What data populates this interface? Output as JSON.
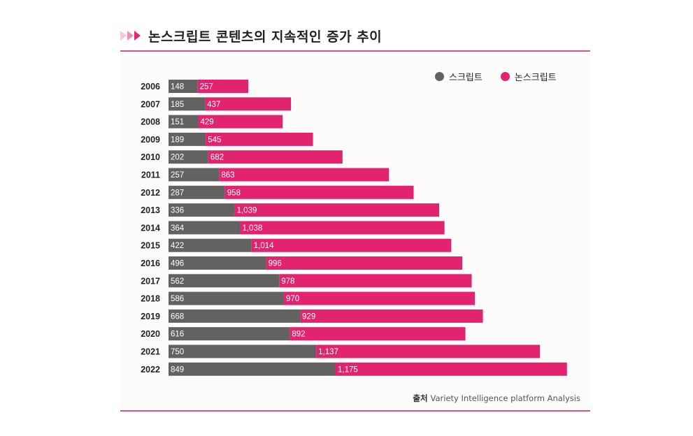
{
  "header": {
    "title": "논스크립트 콘텐츠의 지속적인 증가 추이"
  },
  "colors": {
    "script": "#626262",
    "nonscript": "#e2246e",
    "accent_rule": "#d9547f",
    "panel_bg": "#fdfcfa"
  },
  "legend": {
    "items": [
      {
        "label": "스크립트",
        "color": "#626262"
      },
      {
        "label": "논스크립트",
        "color": "#e2246e"
      }
    ]
  },
  "source": {
    "prefix": "출처",
    "text": "Variety Intelligence platform Analysis"
  },
  "chart_data": {
    "type": "bar",
    "orientation": "horizontal",
    "stacked": true,
    "title": "논스크립트 콘텐츠의 지속적인 증가 추이",
    "xlabel": "",
    "ylabel": "",
    "grid": false,
    "legend_position": "top-right",
    "categories": [
      "2006",
      "2007",
      "2008",
      "2009",
      "2010",
      "2011",
      "2012",
      "2013",
      "2014",
      "2015",
      "2016",
      "2017",
      "2018",
      "2019",
      "2020",
      "2021",
      "2022"
    ],
    "series": [
      {
        "name": "스크립트",
        "values": [
          148,
          185,
          151,
          189,
          202,
          257,
          287,
          336,
          364,
          422,
          496,
          562,
          586,
          668,
          616,
          750,
          849
        ]
      },
      {
        "name": "논스크립트",
        "values": [
          257,
          437,
          429,
          545,
          682,
          863,
          958,
          1039,
          1038,
          1014,
          996,
          978,
          970,
          929,
          892,
          1137,
          1175
        ]
      }
    ],
    "data_labels": {
      "스크립트": [
        "148",
        "185",
        "151",
        "189",
        "202",
        "257",
        "287",
        "336",
        "364",
        "422",
        "496",
        "562",
        "586",
        "668",
        "616",
        "750",
        "849"
      ],
      "논스크립트": [
        "257",
        "437",
        "429",
        "545",
        "682",
        "863",
        "958",
        "1,039",
        "1,038",
        "1,014",
        "996",
        "978",
        "970",
        "929",
        "892",
        "1,137",
        "1,175"
      ]
    },
    "xlim": [
      0,
      2030
    ]
  }
}
